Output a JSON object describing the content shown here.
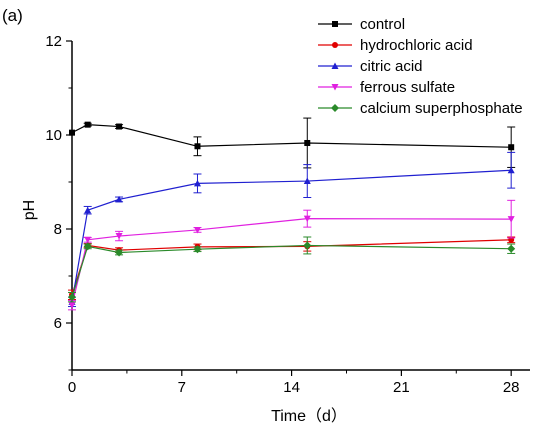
{
  "panel_label": "(a)",
  "chart_data": {
    "type": "line",
    "title": "",
    "xlabel": "Time（d）",
    "ylabel": "pH",
    "xlim": [
      0,
      29.2
    ],
    "ylim": [
      5,
      12
    ],
    "xticks": [
      0,
      7,
      14,
      21,
      28
    ],
    "yticks": [
      6,
      8,
      10,
      12
    ],
    "grid": false,
    "legend_position": "top-right",
    "series": [
      {
        "name": "control",
        "color": "#000000",
        "marker": "square",
        "x": [
          0,
          1,
          3,
          8,
          15,
          28
        ],
        "y": [
          10.05,
          10.22,
          10.18,
          9.76,
          9.83,
          9.74
        ],
        "err": [
          0.0,
          0.03,
          0.04,
          0.2,
          0.53,
          0.43
        ]
      },
      {
        "name": "hydrochloric acid",
        "color": "#e00000",
        "marker": "circle",
        "x": [
          0,
          1,
          3,
          8,
          15,
          28
        ],
        "y": [
          6.6,
          7.65,
          7.55,
          7.62,
          7.63,
          7.77
        ],
        "err": [
          0.1,
          0.04,
          0.05,
          0.06,
          0.1,
          0.06
        ]
      },
      {
        "name": "citric acid",
        "color": "#2020d0",
        "marker": "triangle-up",
        "x": [
          0,
          1,
          3,
          8,
          15,
          28
        ],
        "y": [
          6.45,
          8.4,
          8.63,
          8.97,
          9.02,
          9.25
        ],
        "err": [
          0.1,
          0.08,
          0.05,
          0.2,
          0.35,
          0.38
        ]
      },
      {
        "name": "ferrous sulfate",
        "color": "#e020e0",
        "marker": "triangle-down",
        "x": [
          0,
          1,
          3,
          8,
          15,
          28
        ],
        "y": [
          6.38,
          7.77,
          7.85,
          7.98,
          8.22,
          8.21
        ],
        "err": [
          0.1,
          0.05,
          0.1,
          0.05,
          0.18,
          0.4
        ]
      },
      {
        "name": "calcium superphosphate",
        "color": "#2a8a2a",
        "marker": "diamond",
        "x": [
          0,
          1,
          3,
          8,
          15,
          28
        ],
        "y": [
          6.55,
          7.63,
          7.5,
          7.57,
          7.65,
          7.58
        ],
        "err": [
          0.1,
          0.05,
          0.05,
          0.05,
          0.18,
          0.1
        ]
      }
    ]
  }
}
